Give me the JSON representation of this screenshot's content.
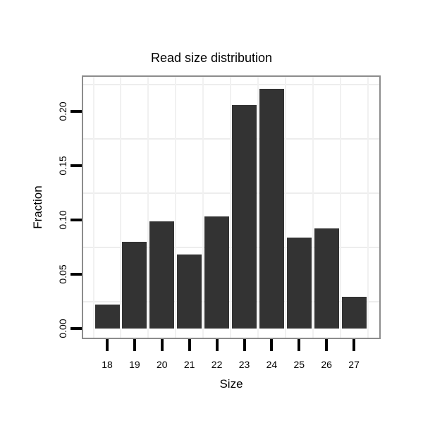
{
  "chart_data": {
    "type": "bar",
    "title": "Read size distribution",
    "xlabel": "Size",
    "ylabel": "Fraction",
    "categories": [
      "18",
      "19",
      "20",
      "21",
      "22",
      "23",
      "24",
      "25",
      "26",
      "27"
    ],
    "values": [
      0.022,
      0.08,
      0.099,
      0.068,
      0.103,
      0.206,
      0.221,
      0.084,
      0.092,
      0.029
    ],
    "yticks": [
      0.0,
      0.05,
      0.1,
      0.15,
      0.2
    ],
    "ytick_labels": [
      "0.00",
      "0.05",
      "0.10",
      "0.15",
      "0.20"
    ],
    "ylim": [
      -0.008,
      0.232
    ],
    "legend": "none",
    "grid": "light gridlines at midpoints between ticks, both axes",
    "colors": {
      "bar": "#333333",
      "panel_border": "#8c8c8c",
      "gridline_h": "#ededed",
      "gridline_v": "#f1f1f1",
      "tick": "#000000",
      "text": "#000000",
      "background": "#ffffff"
    }
  }
}
